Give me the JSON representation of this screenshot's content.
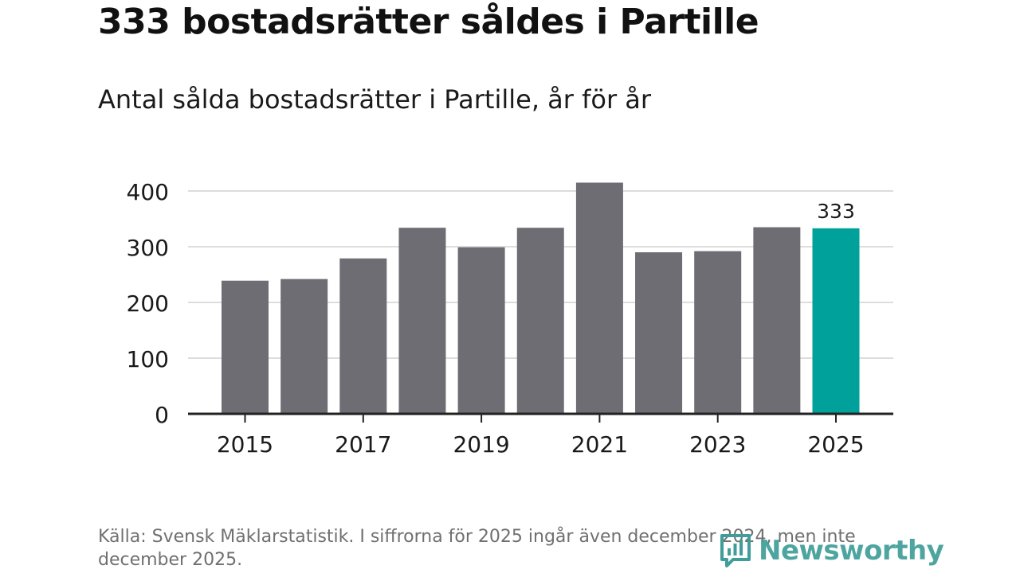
{
  "header": {
    "title": "333 bostadsrätter såldes i Partille",
    "subtitle": "Antal sålda bostadsrätter i Partille, år för år"
  },
  "footer": {
    "source": "Källa: Svensk Mäklarstatistik. I siffrorna för 2025 ingår även december 2024, men inte december 2025."
  },
  "logo": {
    "text": "Newsworthy"
  },
  "colors": {
    "bar": "#6e6d73",
    "highlight": "#00a19a",
    "grid": "#dddddd",
    "axis": "#222222",
    "text": "#1a1a1a",
    "brand": "#3f9e99"
  },
  "chart_data": {
    "type": "bar",
    "title": "333 bostadsrätter såldes i Partille",
    "subtitle": "Antal sålda bostadsrätter i Partille, år för år",
    "xlabel": "",
    "ylabel": "",
    "categories": [
      "2015",
      "2016",
      "2017",
      "2018",
      "2019",
      "2020",
      "2021",
      "2022",
      "2023",
      "2024",
      "2025"
    ],
    "values": [
      239,
      242,
      279,
      334,
      299,
      334,
      415,
      290,
      292,
      335,
      333
    ],
    "highlight_index": 10,
    "data_labels": [
      {
        "index": 10,
        "text": "333"
      }
    ],
    "x_tick_labels": [
      "2015",
      "2017",
      "2019",
      "2021",
      "2023",
      "2025"
    ],
    "y_ticks": [
      0,
      100,
      200,
      300,
      400
    ],
    "ylim": [
      0,
      430
    ],
    "grid": true
  }
}
